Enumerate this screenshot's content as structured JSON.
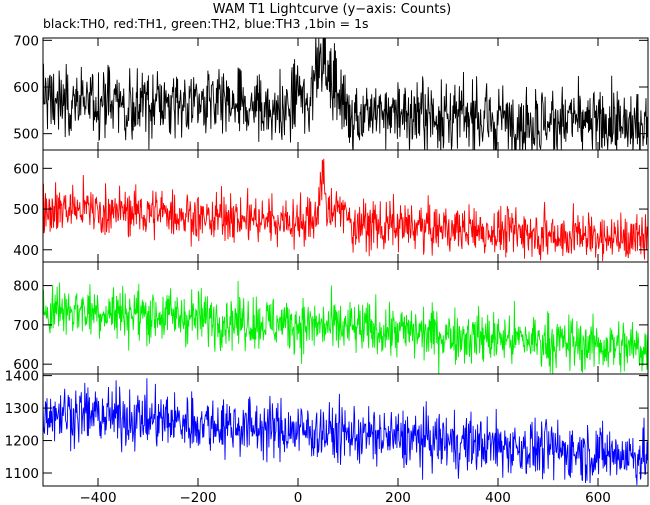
{
  "title": "WAM T1 Lightcurve (y−axis: Counts)",
  "subtitle": "black:TH0, red:TH1, green:TH2, blue:TH3 ,1bin = 1s",
  "chart_data": [
    {
      "type": "line",
      "series": [
        {
          "name": "TH0",
          "color": "#000000",
          "baseline": [
            575,
            515
          ],
          "noise": 38,
          "burst": [
            {
              "x": 0,
              "amp": 40,
              "width": 10
            },
            {
              "x": 45,
              "amp": 140,
              "width": 16
            },
            {
              "x": 75,
              "amp": 60,
              "width": 12
            }
          ]
        }
      ],
      "xlim": [
        -510,
        700
      ],
      "ylim": [
        465,
        705
      ],
      "yticks": [
        500,
        600,
        700
      ],
      "ytick_labels": [
        "500",
        "600",
        "700"
      ]
    },
    {
      "type": "line",
      "series": [
        {
          "name": "TH1",
          "color": "#ff0000",
          "baseline": [
            505,
            425
          ],
          "noise": 30,
          "burst": [
            {
              "x": 48,
              "amp": 110,
              "width": 8
            },
            {
              "x": 80,
              "amp": 40,
              "width": 15
            }
          ]
        }
      ],
      "xlim": [
        -510,
        700
      ],
      "ylim": [
        370,
        645
      ],
      "yticks": [
        400,
        500,
        600
      ],
      "ytick_labels": [
        "400",
        "500",
        "600"
      ]
    },
    {
      "type": "line",
      "series": [
        {
          "name": "TH2",
          "color": "#00ee00",
          "baseline": [
            745,
            640
          ],
          "noise": 35,
          "burst": []
        }
      ],
      "xlim": [
        -510,
        700
      ],
      "ylim": [
        575,
        860
      ],
      "yticks": [
        600,
        700,
        800
      ],
      "ytick_labels": [
        "600",
        "700",
        "800"
      ]
    },
    {
      "type": "line",
      "series": [
        {
          "name": "TH3",
          "color": "#0000ff",
          "baseline": [
            1290,
            1150
          ],
          "noise": 45,
          "burst": []
        }
      ],
      "xlim": [
        -510,
        700
      ],
      "ylim": [
        1060,
        1405
      ],
      "yticks": [
        1100,
        1200,
        1300,
        1400
      ],
      "ytick_labels": [
        "1100",
        "1200",
        "1300",
        "1400"
      ],
      "xticks": [
        -400,
        -200,
        0,
        200,
        400,
        600
      ],
      "xtick_labels": [
        "−400",
        "−200",
        "0",
        "200",
        "400",
        "600"
      ]
    }
  ]
}
